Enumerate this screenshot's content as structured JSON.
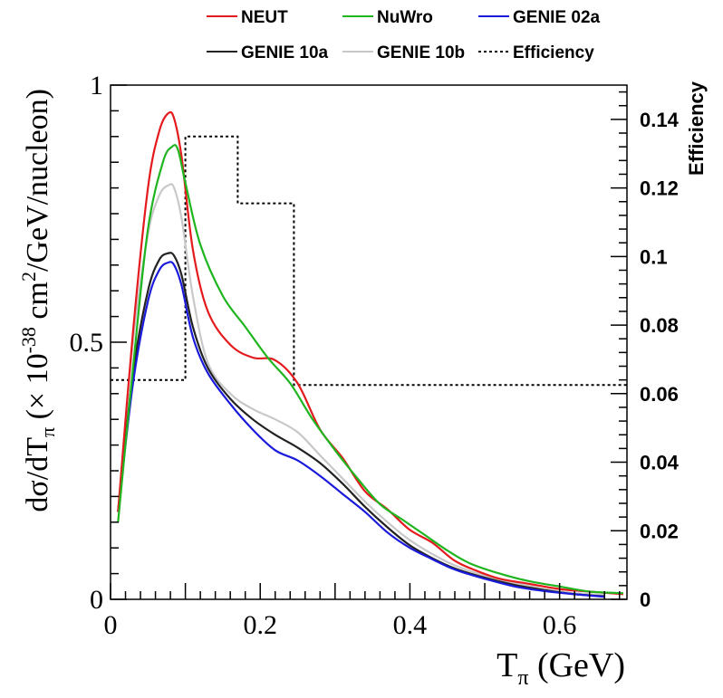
{
  "chart_data": {
    "type": "line",
    "title": "",
    "xlabel_main": "T",
    "xlabel_sub": "π",
    "xlabel_unit": " (GeV)",
    "ylabel_pre": "dσ/dT",
    "ylabel_sub": "π",
    "ylabel_open": " (× 10",
    "ylabel_exp": "-38",
    "ylabel_mid": " cm",
    "ylabel_exp2": "2",
    "ylabel_post": "/GeV/nucleon)",
    "y2label": "Efficiency",
    "xlim": [
      0,
      0.69
    ],
    "ylim": [
      0,
      1.0
    ],
    "y2lim": [
      0,
      0.15
    ],
    "x_ticks": [
      "0",
      "0.2",
      "0.4",
      "0.6"
    ],
    "x_tick_values": [
      0,
      0.2,
      0.4,
      0.6
    ],
    "y_ticks": [
      "0",
      "0.5",
      "1"
    ],
    "y_tick_values": [
      0,
      0.5,
      1.0
    ],
    "y2_ticks": [
      "0",
      "0.02",
      "0.04",
      "0.06",
      "0.08",
      "0.1",
      "0.12",
      "0.14"
    ],
    "y2_tick_values": [
      0,
      0.02,
      0.04,
      0.06,
      0.08,
      0.1,
      0.12,
      0.14
    ],
    "legend_position": "top",
    "series": [
      {
        "name": "NEUT",
        "color": "#e41a1c",
        "style": "solid",
        "x": [
          0.01,
          0.03,
          0.05,
          0.065,
          0.077,
          0.085,
          0.095,
          0.11,
          0.13,
          0.16,
          0.19,
          0.22,
          0.25,
          0.28,
          0.31,
          0.34,
          0.37,
          0.4,
          0.43,
          0.46,
          0.49,
          0.52,
          0.56,
          0.6,
          0.64,
          0.685
        ],
        "y": [
          0.17,
          0.52,
          0.8,
          0.91,
          0.945,
          0.935,
          0.86,
          0.68,
          0.56,
          0.495,
          0.47,
          0.465,
          0.42,
          0.33,
          0.275,
          0.21,
          0.175,
          0.135,
          0.11,
          0.075,
          0.055,
          0.04,
          0.03,
          0.02,
          0.015,
          0.01
        ]
      },
      {
        "name": "NuWro",
        "color": "#1fb51f",
        "style": "solid",
        "x": [
          0.01,
          0.03,
          0.05,
          0.07,
          0.082,
          0.09,
          0.1,
          0.12,
          0.15,
          0.18,
          0.21,
          0.24,
          0.27,
          0.3,
          0.33,
          0.36,
          0.39,
          0.42,
          0.45,
          0.48,
          0.52,
          0.56,
          0.6,
          0.64,
          0.685
        ],
        "y": [
          0.15,
          0.45,
          0.72,
          0.85,
          0.88,
          0.875,
          0.81,
          0.69,
          0.59,
          0.53,
          0.47,
          0.42,
          0.35,
          0.29,
          0.235,
          0.185,
          0.155,
          0.125,
          0.095,
          0.07,
          0.05,
          0.035,
          0.025,
          0.015,
          0.012
        ]
      },
      {
        "name": "GENIE 02a",
        "color": "#1a1adb",
        "style": "solid",
        "x": [
          0.01,
          0.03,
          0.05,
          0.065,
          0.077,
          0.085,
          0.095,
          0.11,
          0.13,
          0.16,
          0.19,
          0.22,
          0.25,
          0.28,
          0.31,
          0.34,
          0.37,
          0.4,
          0.43,
          0.46,
          0.5,
          0.54,
          0.58,
          0.62,
          0.66
        ],
        "y": [
          0.17,
          0.42,
          0.58,
          0.64,
          0.655,
          0.65,
          0.61,
          0.51,
          0.44,
          0.38,
          0.33,
          0.29,
          0.27,
          0.24,
          0.205,
          0.17,
          0.13,
          0.1,
          0.078,
          0.058,
          0.04,
          0.025,
          0.016,
          0.01,
          0.005
        ]
      },
      {
        "name": "GENIE 10a",
        "color": "#222222",
        "style": "solid",
        "x": [
          0.01,
          0.03,
          0.05,
          0.065,
          0.077,
          0.085,
          0.095,
          0.11,
          0.13,
          0.16,
          0.19,
          0.22,
          0.25,
          0.28,
          0.31,
          0.34,
          0.37,
          0.4,
          0.43,
          0.46,
          0.5,
          0.54,
          0.58,
          0.62,
          0.66
        ],
        "y": [
          0.17,
          0.44,
          0.6,
          0.66,
          0.673,
          0.668,
          0.63,
          0.53,
          0.45,
          0.39,
          0.35,
          0.32,
          0.295,
          0.265,
          0.225,
          0.18,
          0.14,
          0.105,
          0.08,
          0.06,
          0.042,
          0.028,
          0.018,
          0.01,
          0.006
        ]
      },
      {
        "name": "GENIE 10b",
        "color": "#c8c8c8",
        "style": "solid",
        "x": [
          0.01,
          0.03,
          0.05,
          0.065,
          0.077,
          0.085,
          0.095,
          0.11,
          0.13,
          0.16,
          0.19,
          0.22,
          0.25,
          0.28,
          0.31,
          0.34,
          0.37,
          0.4,
          0.43,
          0.46,
          0.5,
          0.54,
          0.58,
          0.62,
          0.66
        ],
        "y": [
          0.17,
          0.5,
          0.71,
          0.785,
          0.805,
          0.8,
          0.74,
          0.59,
          0.46,
          0.4,
          0.37,
          0.35,
          0.325,
          0.28,
          0.235,
          0.19,
          0.15,
          0.115,
          0.088,
          0.066,
          0.046,
          0.032,
          0.02,
          0.012,
          0.008
        ]
      }
    ],
    "efficiency": {
      "name": "Efficiency",
      "color": "#000000",
      "style": "dotted",
      "bin_edges": [
        0.0,
        0.1,
        0.17,
        0.245,
        0.69
      ],
      "values": [
        0.064,
        0.135,
        0.1155,
        0.0625
      ]
    }
  }
}
